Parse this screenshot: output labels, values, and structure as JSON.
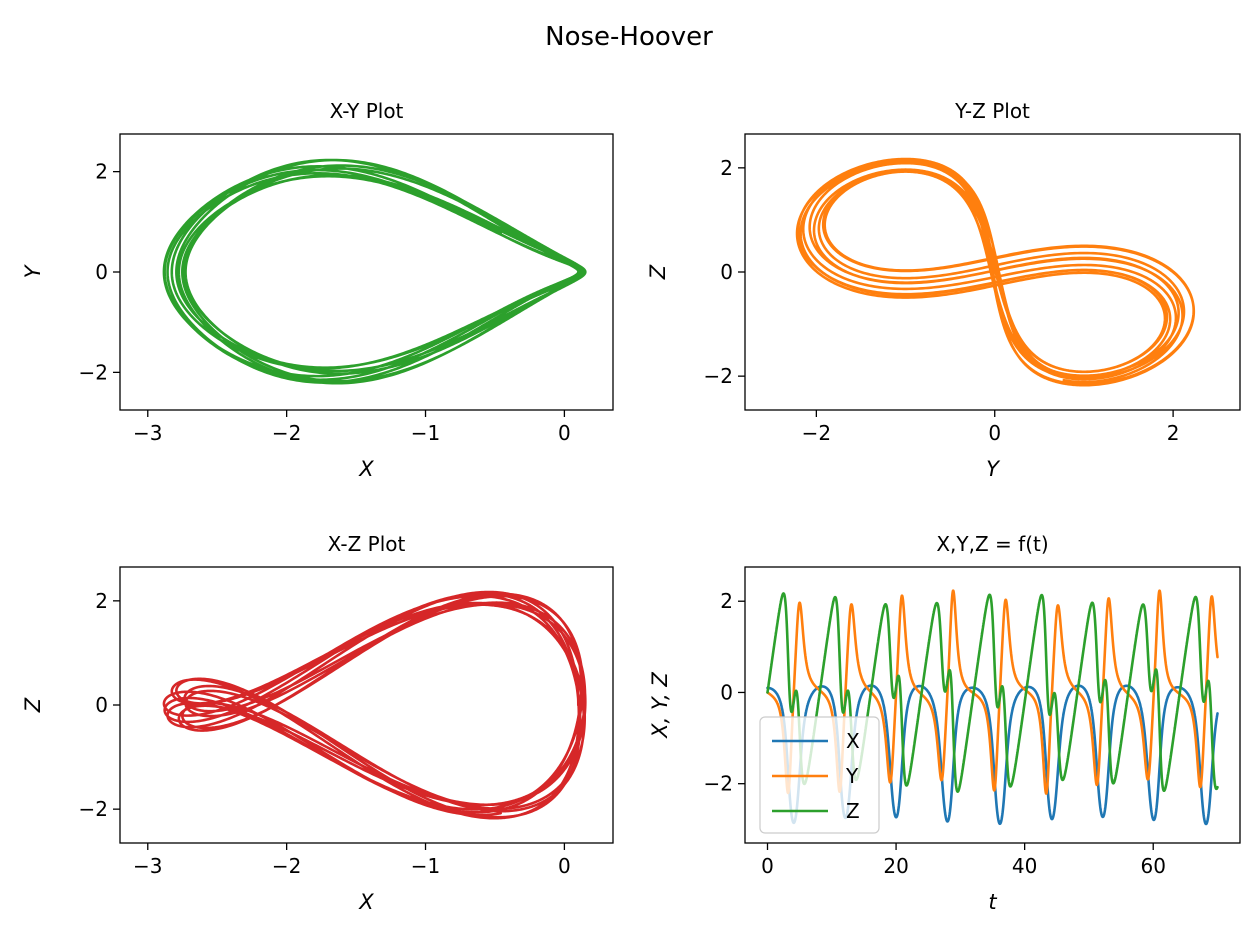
{
  "suptitle": "Nose-Hoover",
  "chart_data": [
    {
      "id": "xy",
      "type": "line",
      "title": "X-Y Plot",
      "xlabel": "X",
      "ylabel": "Y",
      "xlim": [
        -3.2,
        0.35
      ],
      "ylim": [
        -2.75,
        2.75
      ],
      "xticks": [
        -3,
        -2,
        -1,
        0
      ],
      "yticks": [
        -2,
        0,
        2
      ],
      "series": [
        {
          "color": "#2ca02c",
          "x_var": "X",
          "y_var": "Y"
        }
      ]
    },
    {
      "id": "yz",
      "type": "line",
      "title": "Y-Z Plot",
      "xlabel": "Y",
      "ylabel": "Z",
      "xlim": [
        -2.8,
        2.75
      ],
      "ylim": [
        -2.65,
        2.65
      ],
      "xticks": [
        -2,
        0,
        2
      ],
      "yticks": [
        -2,
        0,
        2
      ],
      "series": [
        {
          "color": "#ff7f0e",
          "x_var": "Y",
          "y_var": "Z"
        }
      ]
    },
    {
      "id": "xz",
      "type": "line",
      "title": "X-Z Plot",
      "xlabel": "X",
      "ylabel": "Z",
      "xlim": [
        -3.2,
        0.35
      ],
      "ylim": [
        -2.65,
        2.65
      ],
      "xticks": [
        -3,
        -2,
        -1,
        0
      ],
      "yticks": [
        -2,
        0,
        2
      ],
      "series": [
        {
          "color": "#d62728",
          "x_var": "X",
          "y_var": "Z"
        }
      ]
    },
    {
      "id": "t",
      "type": "line",
      "title": "X,Y,Z = f(t)",
      "xlabel": "t",
      "ylabel": "X, Y, Z",
      "xlim": [
        -3.5,
        73.5
      ],
      "ylim": [
        -3.3,
        2.75
      ],
      "xticks": [
        0,
        20,
        40,
        60
      ],
      "yticks": [
        -2,
        0,
        2
      ],
      "legend": "lower-left",
      "series": [
        {
          "name": "X",
          "color": "#1f77b4",
          "var": "X"
        },
        {
          "name": "Y",
          "color": "#ff7f0e",
          "var": "Y"
        },
        {
          "name": "Z",
          "color": "#2ca02c",
          "var": "Z"
        }
      ]
    }
  ],
  "simulation": {
    "model": "nose-hoover",
    "t_end": 70,
    "initial": [
      0.1,
      0,
      0
    ]
  }
}
